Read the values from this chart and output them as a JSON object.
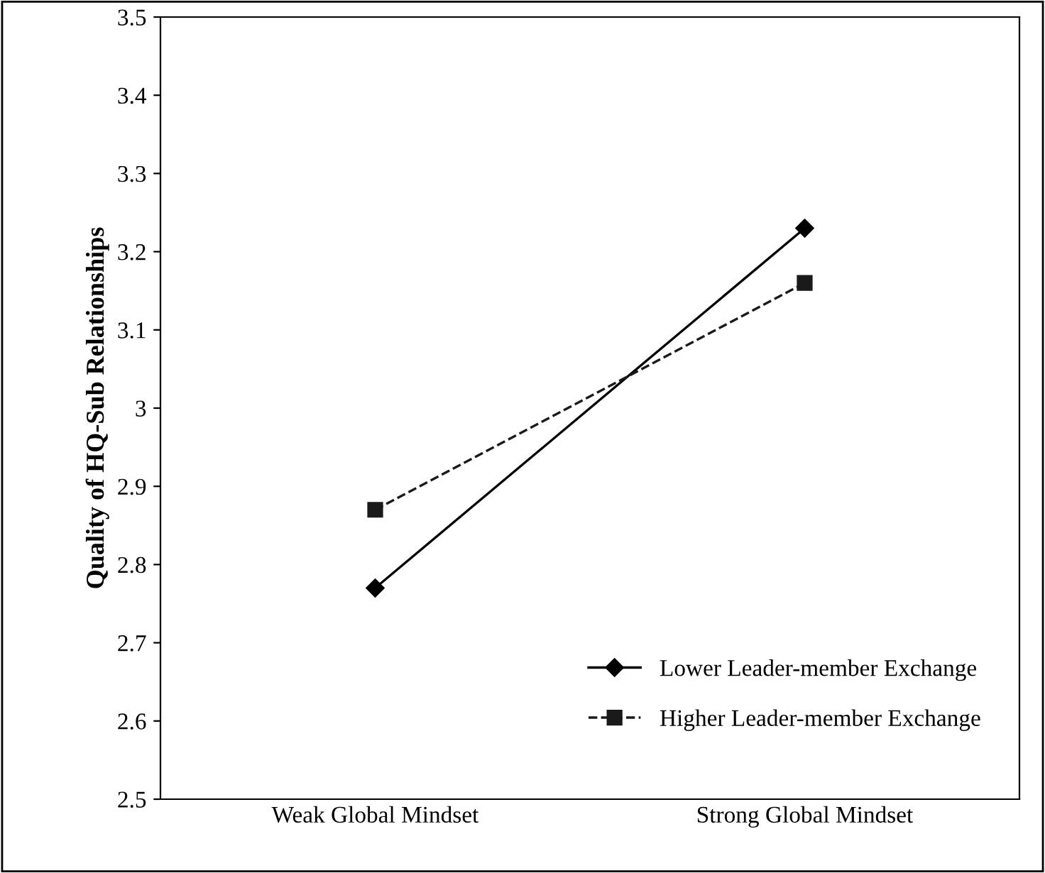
{
  "chart_data": {
    "type": "line",
    "ylabel": "Quality of HQ-Sub Relationships",
    "categories": [
      "Weak Global Mindset",
      "Strong Global Mindset"
    ],
    "series": [
      {
        "name": "Lower Leader-member Exchange",
        "color": "#000000",
        "values": [
          2.77,
          3.23
        ],
        "marker": "diamond",
        "line_style": "solid"
      },
      {
        "name": "Higher Leader-member Exchange",
        "color": "#1a1a1a",
        "values": [
          2.87,
          3.16
        ],
        "marker": "square",
        "line_style": "dashed"
      }
    ],
    "ylim": [
      2.5,
      3.5
    ],
    "yticks": [
      2.5,
      2.6,
      2.7,
      2.8,
      2.9,
      3,
      3.1,
      3.2,
      3.3,
      3.4,
      3.5
    ],
    "grid": false,
    "legend": "bottom right"
  }
}
